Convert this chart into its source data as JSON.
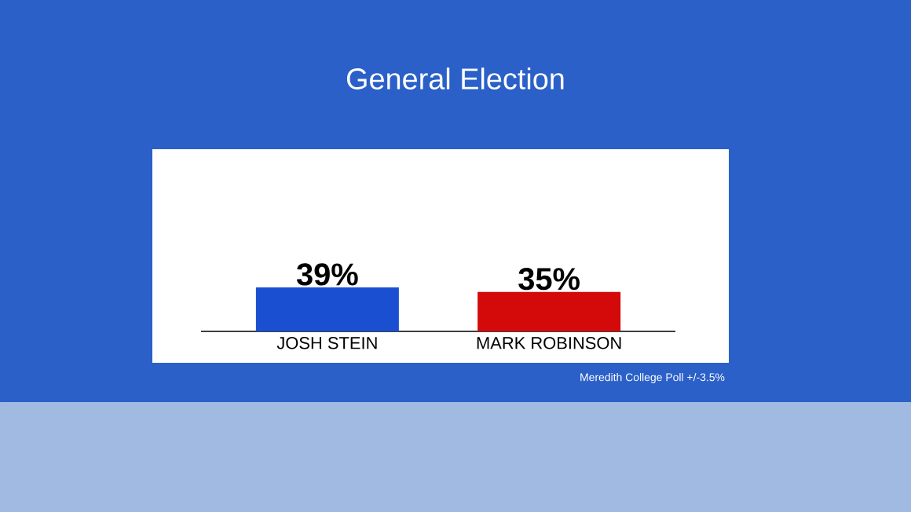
{
  "chart_data": {
    "type": "bar",
    "title": "General Election",
    "categories": [
      "JOSH STEIN",
      "MARK ROBINSON"
    ],
    "values": [
      39,
      35
    ],
    "colors": [
      "#1a4fd2",
      "#d40a0a"
    ],
    "value_labels": [
      "39%",
      "35%"
    ],
    "annotations": [
      "Meredith College Poll +/-3.5%"
    ]
  }
}
